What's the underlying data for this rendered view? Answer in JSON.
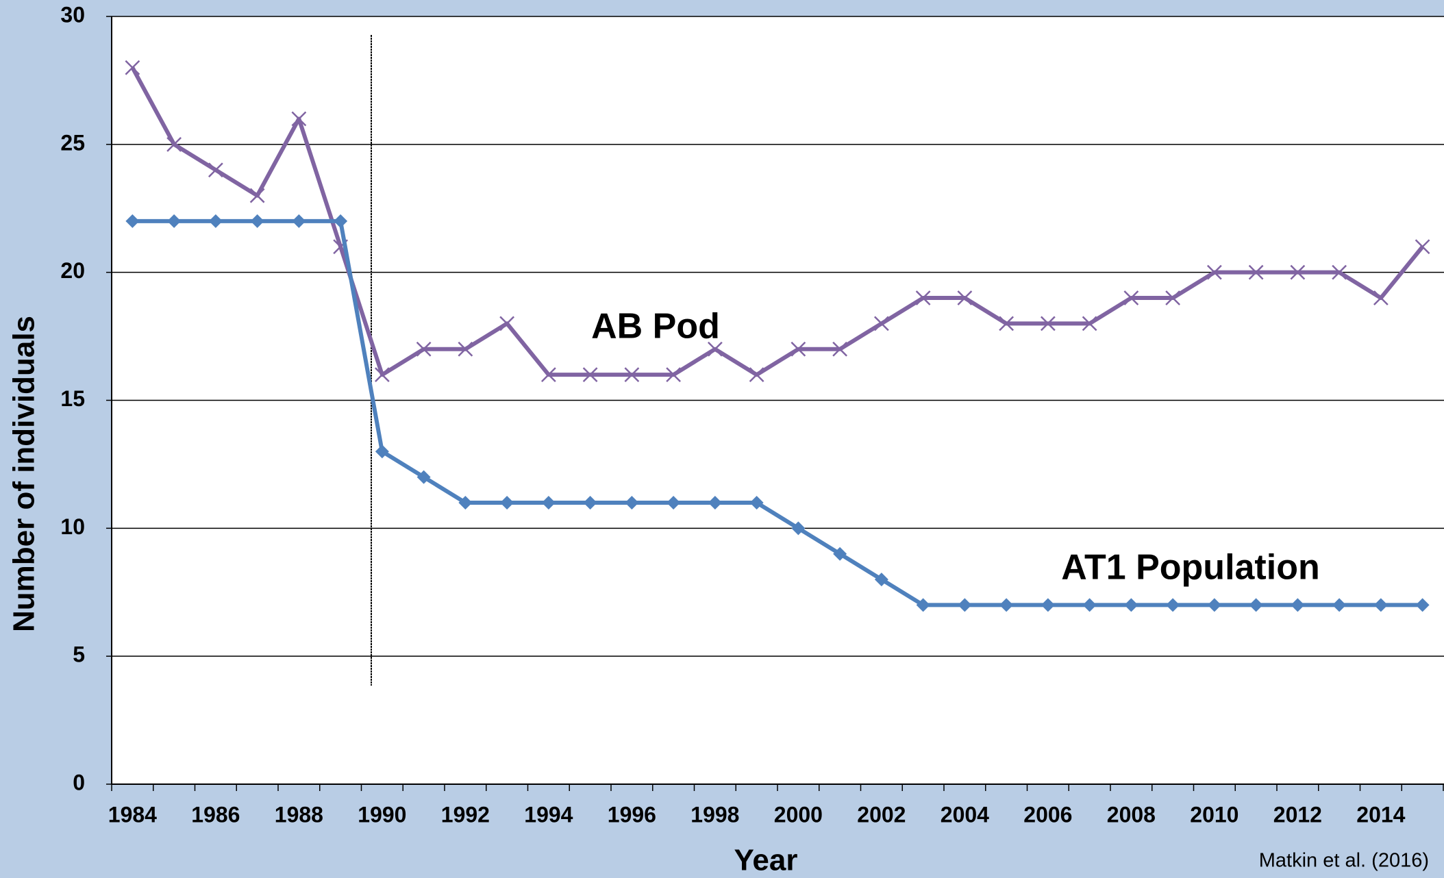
{
  "chart_data": {
    "type": "line",
    "x_label": "Year",
    "y_label": "Number of individuals",
    "annotations": [
      "Matkin et al. (2016)"
    ],
    "categories": [
      "1984",
      null,
      "1986",
      null,
      "1988",
      null,
      "1990",
      null,
      "1992",
      null,
      "1994",
      null,
      "1996",
      null,
      "1998",
      null,
      "2000",
      null,
      "2002",
      null,
      "2004",
      null,
      "2006",
      null,
      "2008",
      null,
      "2010",
      null,
      "2012",
      null,
      "2014",
      null
    ],
    "series": [
      {
        "name": "AB Pod",
        "color": "#8064a2",
        "marker": "x",
        "values": [
          28,
          25,
          24,
          23,
          26,
          21,
          16,
          17,
          17,
          18,
          16,
          16,
          16,
          16,
          17,
          16,
          17,
          17,
          18,
          19,
          19,
          18,
          18,
          18,
          19,
          19,
          20,
          20,
          20,
          20,
          19,
          21
        ]
      },
      {
        "name": "AT1 Population",
        "color": "#4f81bd",
        "marker": "diamond",
        "values": [
          22,
          22,
          22,
          22,
          22,
          22,
          13,
          12,
          11,
          11,
          11,
          11,
          11,
          11,
          11,
          11,
          10,
          9,
          8,
          7,
          7,
          7,
          7,
          7,
          7,
          7,
          7,
          7,
          7,
          7,
          7,
          7
        ]
      }
    ],
    "ylim": [
      0,
      30
    ],
    "yticks": [
      0,
      5,
      10,
      15,
      20,
      25,
      30
    ],
    "grid": true
  }
}
